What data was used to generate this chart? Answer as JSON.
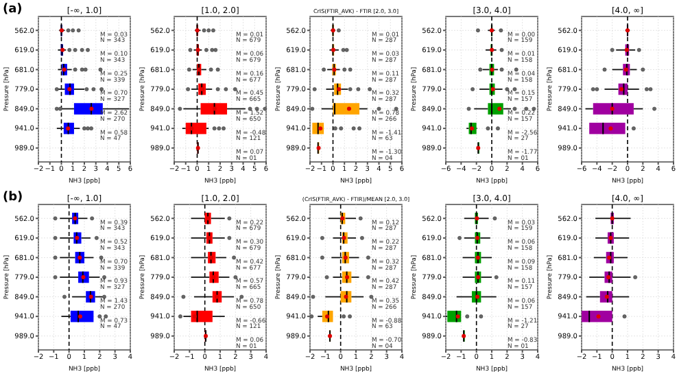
{
  "chart_data": [
    {
      "type": "box",
      "orientation": "horizontal",
      "title": "[-∞, 1.0]",
      "xlabel": "NH3 [ppb]",
      "ylabel": "Pressure [hPa]",
      "categories": [
        "562.0",
        "619.0",
        "681.0",
        "779.0",
        "849.0",
        "941.0",
        "989.0"
      ],
      "color": "#0000ff",
      "xlim": [
        -2,
        6
      ],
      "xticks": [
        -2,
        -1,
        0,
        1,
        2,
        3,
        4,
        5,
        6
      ],
      "grid": true,
      "ref_lines": [
        {
          "axis": "x",
          "value": 0,
          "line_style": "dashed"
        }
      ],
      "boxes": [
        {
          "low": -0.2,
          "q1": -0.05,
          "median": 0,
          "q3": 0.05,
          "high": 0.3,
          "mean": 0.03,
          "outliers": [
            0.6,
            1.0,
            1.5
          ]
        },
        {
          "low": -0.3,
          "q1": -0.05,
          "median": 0.05,
          "q3": 0.15,
          "high": 0.4,
          "mean": 0.1,
          "outliers": [
            0.7,
            1.2,
            1.8,
            2.3
          ]
        },
        {
          "low": -0.3,
          "q1": 0.05,
          "median": 0.2,
          "q3": 0.5,
          "high": 0.9,
          "mean": 0.25,
          "outliers": [
            1.2,
            1.8,
            2.1,
            3.4
          ]
        },
        {
          "low": -0.3,
          "q1": 0.3,
          "median": 0.75,
          "q3": 1.1,
          "high": 2.0,
          "mean": 0.7,
          "outliers": [
            -0.4,
            2.2,
            2.8,
            3.5
          ]
        },
        {
          "low": 0,
          "q1": 1.1,
          "median": 2.6,
          "q3": 3.6,
          "high": 5.9,
          "mean": 2.62,
          "outliers": [
            -0.4,
            -0.1
          ]
        },
        {
          "low": -0.4,
          "q1": 0.2,
          "median": 0.6,
          "q3": 1.1,
          "high": 1.6,
          "mean": 0.58,
          "outliers": [
            2.0,
            2.3,
            2.6
          ]
        },
        null
      ],
      "annotations": [
        "(a)",
        "M = 0.03\nN = 343",
        "M = 0.10\nN = 343",
        "M = 0.25\nN = 339",
        "M = 0.70\nN = 327",
        "M = 2.62\nN = 270",
        "M = 0.58\nN = 47"
      ]
    },
    {
      "type": "box",
      "orientation": "horizontal",
      "title": "[1.0, 2.0]",
      "xlabel": "NH3 [ppb]",
      "ylabel": "Pressure [hPa]",
      "categories": [
        "562.0",
        "619.0",
        "681.0",
        "779.0",
        "849.0",
        "941.0",
        "989.0"
      ],
      "color": "#ff0000",
      "xlim": [
        -2,
        6
      ],
      "xticks": [
        -2,
        -1,
        0,
        1,
        2,
        3,
        4,
        5,
        6
      ],
      "grid": true,
      "ref_lines": [
        {
          "axis": "x",
          "value": 0,
          "line_style": "dashed"
        }
      ],
      "boxes": [
        {
          "low": -0.2,
          "q1": -0.05,
          "median": 0,
          "q3": 0.05,
          "high": 0.3,
          "mean": 0.01,
          "outliers": [
            0.6,
            1.0,
            1.4
          ]
        },
        {
          "low": -0.3,
          "q1": -0.05,
          "median": 0.05,
          "q3": 0.15,
          "high": 0.4,
          "mean": 0.06,
          "outliers": [
            -0.6,
            0.8,
            1.3,
            1.6
          ]
        },
        {
          "low": -0.4,
          "q1": 0,
          "median": 0.15,
          "q3": 0.35,
          "high": 0.8,
          "mean": 0.16,
          "outliers": [
            -0.7,
            1.2,
            1.8
          ]
        },
        {
          "low": -0.5,
          "q1": 0.1,
          "median": 0.4,
          "q3": 0.75,
          "high": 1.3,
          "mean": 0.45,
          "outliers": [
            -0.8,
            1.8,
            2.5,
            3.3
          ]
        },
        {
          "low": -1.2,
          "q1": 0.3,
          "median": 1.5,
          "q3": 2.6,
          "high": 4.2,
          "mean": 1.52,
          "outliers": [
            -1.5,
            4.6,
            5.2,
            5.9
          ]
        },
        {
          "low": -1.3,
          "q1": -1.0,
          "median": -0.5,
          "q3": 0.8,
          "high": 1.0,
          "mean": -0.48,
          "outliers": [
            1.5,
            1.9,
            2.3
          ]
        },
        {
          "low": 0,
          "q1": 0,
          "median": 0.07,
          "q3": 0.1,
          "high": 0.15,
          "mean": 0.07
        }
      ],
      "annotations": [
        "M = 0.01\nN = 679",
        "M = 0.06\nN = 679",
        "M = 0.16\nN = 677",
        "M = 0.45\nN = 665",
        "M = 1.52\nN = 650",
        "M = -0.48\nN = 121",
        "M = 0.07\nN = 01"
      ]
    },
    {
      "type": "box",
      "orientation": "horizontal",
      "title": "CrIS(FTIR_AVK) - FTIR [2.0, 3.0]",
      "xlabel": "NH3 [ppb]",
      "ylabel": "Pressure [hPa]",
      "categories": [
        "562.0",
        "619.0",
        "681.0",
        "779.0",
        "849.0",
        "941.0",
        "989.0"
      ],
      "color": "#ffa500",
      "xlim": [
        -2,
        6
      ],
      "xticks": [
        -2,
        -1,
        0,
        1,
        2,
        3,
        4,
        5,
        6
      ],
      "grid": true,
      "ref_lines": [
        {
          "axis": "x",
          "value": 0,
          "line_style": "dashed"
        }
      ],
      "boxes": [
        {
          "low": -0.2,
          "q1": -0.05,
          "median": 0,
          "q3": 0.05,
          "high": 0.2,
          "mean": 0.01,
          "outliers": [
            0.5
          ]
        },
        {
          "low": -0.3,
          "q1": -0.05,
          "median": 0,
          "q3": 0.1,
          "high": 0.5,
          "mean": 0.03,
          "outliers": [
            0.9,
            1.2
          ]
        },
        {
          "low": -0.5,
          "q1": -0.05,
          "median": 0.1,
          "q3": 0.25,
          "high": 0.6,
          "mean": 0.11,
          "outliers": [
            -0.8,
            1.0,
            1.5
          ]
        },
        {
          "low": -0.6,
          "q1": 0.1,
          "median": 0.4,
          "q3": 0.7,
          "high": 1.3,
          "mean": 0.52,
          "outliers": [
            -1.6,
            1.5,
            2.2,
            3.2
          ]
        },
        {
          "low": -1.0,
          "q1": 0,
          "median": 0.15,
          "q3": 2.3,
          "high": 3.0,
          "mean": 1.4,
          "outliers": [
            -1.8,
            4.0,
            5.5
          ]
        },
        {
          "low": -1.8,
          "q1": -1.8,
          "median": -1.3,
          "q3": -0.8,
          "high": -0.8,
          "mean": -1.1,
          "outliers": [
            0.2,
            0.7,
            1.8,
            2.3
          ]
        },
        {
          "low": -1.4,
          "q1": -1.35,
          "median": -1.3,
          "q3": -1.2,
          "high": -1.2,
          "mean": -1.25
        }
      ],
      "annotations": [
        "M = 0.01\nN = 287",
        "M = 0.03\nN = 287",
        "M = 0.11\nN = 287",
        "M = 0.32\nN = 287",
        "M = 0.78\nN = 266",
        "M = -1.41\nN = 63",
        "M = -1.30\nN = 04"
      ]
    },
    {
      "type": "box",
      "orientation": "horizontal",
      "title": "[3.0, 4.0]",
      "xlabel": "NH3 [ppb]",
      "ylabel": "Pressure [hPa]",
      "categories": [
        "562.0",
        "619.0",
        "681.0",
        "779.0",
        "849.0",
        "941.0",
        "989.0"
      ],
      "color": "#00a000",
      "xlim": [
        -6,
        6
      ],
      "xticks": [
        -6,
        -4,
        -2,
        0,
        2,
        4,
        6
      ],
      "grid": true,
      "ref_lines": [
        {
          "axis": "x",
          "value": 0,
          "line_style": "dashed"
        }
      ],
      "boxes": [
        {
          "low": -0.5,
          "q1": -0.1,
          "median": 0,
          "q3": 0.1,
          "high": 0.4,
          "mean": 0,
          "outliers": [
            -1.8,
            1.2
          ]
        },
        {
          "low": -0.8,
          "q1": -0.15,
          "median": 0,
          "q3": 0.1,
          "high": 0.6,
          "mean": 0.01,
          "outliers": [
            1.3
          ]
        },
        {
          "low": -1.2,
          "q1": -0.3,
          "median": 0,
          "q3": 0.3,
          "high": 0.8,
          "mean": 0.04,
          "outliers": [
            -1.5,
            1.3,
            3.2
          ]
        },
        {
          "low": -1.6,
          "q1": -0.3,
          "median": 0,
          "q3": 0.4,
          "high": 1.4,
          "mean": 0.15,
          "outliers": [
            -2.5,
            2.0,
            3.0
          ]
        },
        {
          "low": -2.3,
          "q1": -0.5,
          "median": 0,
          "q3": 1.5,
          "high": 2.5,
          "mean": 1.0,
          "outliers": [
            -3.0,
            3.0,
            4.5,
            5.5
          ]
        },
        {
          "low": -3.3,
          "q1": -3.0,
          "median": -2.7,
          "q3": -2.0,
          "high": -1.9,
          "mean": -2.6,
          "outliers": [
            -0.5,
            0.8
          ]
        },
        {
          "low": -1.8,
          "q1": -1.8,
          "median": -1.77,
          "q3": -1.75,
          "high": -1.75,
          "mean": -1.77
        }
      ],
      "annotations": [
        "M = 0.00\nN = 159",
        "M = 0.01\nN = 158",
        "M = 0.04\nN = 158",
        "M = 0.15\nN = 157",
        "M = 0.22\nN = 157",
        "M = -2.56\nN = 27",
        "M = -1.77\nN = 01"
      ]
    },
    {
      "type": "box",
      "orientation": "horizontal",
      "title": "[4.0, ∞]",
      "xlabel": "NH3 [ppb]",
      "ylabel": "Pressure [hPa]",
      "categories": [
        "562.0",
        "619.0",
        "681.0",
        "779.0",
        "849.0",
        "941.0",
        "989.0"
      ],
      "color": "#a000a0",
      "xlim": [
        -6,
        6
      ],
      "xticks": [
        -6,
        -4,
        -2,
        0,
        2,
        4,
        6
      ],
      "grid": true,
      "ref_lines": [
        {
          "axis": "x",
          "value": 0,
          "line_style": "dashed"
        }
      ],
      "boxes": [
        {
          "low": -0.3,
          "q1": -0.1,
          "median": 0,
          "q3": 0.1,
          "high": 0.3,
          "mean": 0
        },
        {
          "low": -1.5,
          "q1": -0.3,
          "median": 0,
          "q3": 0.2,
          "high": 1.0,
          "mean": -0.1,
          "outliers": [
            -2.0,
            1.5
          ]
        },
        {
          "low": -2.0,
          "q1": -0.6,
          "median": -0.1,
          "q3": 0.3,
          "high": 1.2,
          "mean": -0.2,
          "outliers": [
            -3.0,
            2.0
          ]
        },
        {
          "low": -3.0,
          "q1": -1.2,
          "median": -0.5,
          "q3": 0,
          "high": 1.5,
          "mean": -0.8,
          "outliers": [
            -4.5,
            -4.0,
            2.5,
            3.0
          ]
        },
        {
          "low": -5.5,
          "q1": -4.5,
          "median": -2.0,
          "q3": 0.8,
          "high": 2.0,
          "mean": -2.0,
          "outliers": [
            3.5
          ]
        },
        {
          "low": -5.0,
          "q1": -5.0,
          "median": -3.2,
          "q3": -0.3,
          "high": -0.3,
          "mean": -2.2,
          "outliers": [
            0.8
          ]
        },
        null
      ]
    },
    {
      "type": "box",
      "orientation": "horizontal",
      "title": "[-∞, 1.0]",
      "xlabel": "NH3 [ppb]",
      "ylabel": "Pressure [hPa]",
      "categories": [
        "562.0",
        "619.0",
        "681.0",
        "779.0",
        "849.0",
        "941.0",
        "989.0"
      ],
      "color": "#0000ff",
      "xlim": [
        -2,
        4
      ],
      "xticks": [
        -2,
        -1,
        0,
        1,
        2,
        3,
        4
      ],
      "grid": true,
      "ref_lines": [
        {
          "axis": "x",
          "value": 0,
          "line_style": "dashed"
        }
      ],
      "boxes": [
        {
          "low": -0.6,
          "q1": 0.2,
          "median": 0.4,
          "q3": 0.6,
          "high": 1.2,
          "mean": 0.39,
          "outliers": [
            -0.9,
            1.5
          ]
        },
        {
          "low": -0.6,
          "q1": 0.3,
          "median": 0.5,
          "q3": 0.8,
          "high": 1.4,
          "mean": 0.52,
          "outliers": [
            -0.9,
            1.8
          ]
        },
        {
          "low": -0.6,
          "q1": 0.4,
          "median": 0.7,
          "q3": 1.0,
          "high": 1.6,
          "mean": 0.7,
          "outliers": [
            -0.9,
            2.1
          ]
        },
        {
          "low": -0.6,
          "q1": 0.6,
          "median": 0.9,
          "q3": 1.3,
          "high": 2.0,
          "mean": 0.93,
          "outliers": [
            -0.9,
            2.3
          ]
        },
        {
          "low": 0.2,
          "q1": 1.1,
          "median": 1.4,
          "q3": 1.7,
          "high": 2.2,
          "mean": 1.43,
          "outliers": [
            -0.3,
            2.3
          ]
        },
        {
          "low": -0.5,
          "q1": 0.1,
          "median": 0.6,
          "q3": 1.6,
          "high": 1.6,
          "mean": 0.73,
          "outliers": [
            2.0,
            2.4
          ]
        },
        null
      ],
      "annotations": [
        "(b)",
        "M = 0.39\nN = 343",
        "M = 0.52\nN = 343",
        "M = 0.70\nN = 339",
        "M = 0.93\nN = 327",
        "M = 1.43\nN = 270",
        "M = 0.73\nN = 47"
      ]
    },
    {
      "type": "box",
      "orientation": "horizontal",
      "title": "[1.0, 2.0]",
      "xlabel": "NH3 [ppb]",
      "ylabel": "Pressure [hPa]",
      "categories": [
        "562.0",
        "619.0",
        "681.0",
        "779.0",
        "849.0",
        "941.0",
        "989.0"
      ],
      "color": "#ff0000",
      "xlim": [
        -2,
        4
      ],
      "xticks": [
        -2,
        -1,
        0,
        1,
        2,
        3,
        4
      ],
      "grid": true,
      "ref_lines": [
        {
          "axis": "x",
          "value": 0,
          "line_style": "dashed"
        }
      ],
      "boxes": [
        {
          "low": -0.9,
          "q1": 0,
          "median": 0.2,
          "q3": 0.4,
          "high": 1.3,
          "mean": 0.22,
          "outliers": [
            1.6
          ]
        },
        {
          "low": -0.9,
          "q1": 0.1,
          "median": 0.3,
          "q3": 0.5,
          "high": 1.3,
          "mean": 0.3,
          "outliers": [
            1.6
          ]
        },
        {
          "low": -0.9,
          "q1": 0.2,
          "median": 0.4,
          "q3": 0.7,
          "high": 1.4,
          "mean": 0.42,
          "outliers": [
            1.9
          ]
        },
        {
          "low": -0.9,
          "q1": 0.3,
          "median": 0.55,
          "q3": 0.9,
          "high": 1.6,
          "mean": 0.57,
          "outliers": [
            2.0
          ]
        },
        {
          "low": -0.7,
          "q1": 0.5,
          "median": 0.8,
          "q3": 1.1,
          "high": 1.9,
          "mean": 0.78,
          "outliers": [
            -1.4,
            2.4
          ]
        },
        {
          "low": -1.4,
          "q1": -0.9,
          "median": -0.5,
          "q3": 0.5,
          "high": 1.3,
          "mean": -0.66,
          "outliers": [
            -1.6
          ]
        },
        {
          "low": -0.05,
          "q1": 0,
          "median": 0.06,
          "q3": 0.1,
          "high": 0.15,
          "mean": 0.06
        }
      ],
      "annotations": [
        "M = 0.22\nN = 679",
        "M = 0.30\nN = 679",
        "M = 0.42\nN = 677",
        "M = 0.57\nN = 665",
        "M = 0.78\nN = 650",
        "M = -0.66\nN = 121",
        "M = 0.06\nN = 01"
      ]
    },
    {
      "type": "box",
      "orientation": "horizontal",
      "title": "(CrIS(FTIR_AVK) - FTIR)/MEAN [2.0, 3.0]",
      "xlabel": "NH3 [ppb]",
      "ylabel": "Pressure [hPa]",
      "categories": [
        "562.0",
        "619.0",
        "681.0",
        "779.0",
        "849.0",
        "941.0",
        "989.0"
      ],
      "color": "#ffa500",
      "xlim": [
        -2,
        4
      ],
      "xticks": [
        -2,
        -1,
        0,
        1,
        2,
        3,
        4
      ],
      "grid": true,
      "ref_lines": [
        {
          "axis": "x",
          "value": 0,
          "line_style": "dashed"
        }
      ],
      "boxes": [
        {
          "low": -0.8,
          "q1": 0,
          "median": 0.1,
          "q3": 0.3,
          "high": 1.0,
          "mean": 0.12,
          "outliers": [
            1.3
          ]
        },
        {
          "low": -0.5,
          "q1": 0.1,
          "median": 0.2,
          "q3": 0.45,
          "high": 1.0,
          "mean": 0.22,
          "outliers": [
            -1.2,
            1.4
          ]
        },
        {
          "low": -0.6,
          "q1": 0.1,
          "median": 0.3,
          "q3": 0.55,
          "high": 1.2,
          "mean": 0.32,
          "outliers": [
            -1.2,
            1.8
          ]
        },
        {
          "low": -0.5,
          "q1": 0.1,
          "median": 0.4,
          "q3": 0.7,
          "high": 1.2,
          "mean": 0.42,
          "outliers": [
            -0.9,
            1.8
          ]
        },
        {
          "low": -1.0,
          "q1": 0,
          "median": 0.4,
          "q3": 0.7,
          "high": 1.5,
          "mean": 0.35,
          "outliers": [
            -1.8,
            2.0
          ]
        },
        {
          "low": -1.5,
          "q1": -1.2,
          "median": -0.8,
          "q3": -0.5,
          "high": -0.5,
          "mean": -0.88,
          "outliers": [
            -1.9,
            0.2,
            0.6
          ]
        },
        {
          "low": -0.8,
          "q1": -0.75,
          "median": -0.7,
          "q3": -0.65,
          "high": -0.6,
          "mean": -0.7
        }
      ],
      "annotations": [
        "M = 0.12\nN = 287",
        "M = 0.22\nN = 287",
        "M = 0.32\nN = 287",
        "M = 0.42\nN = 287",
        "M = 0.35\nN = 266",
        "M = -0.88\nN = 63",
        "M = -0.70\nN = 04"
      ]
    },
    {
      "type": "box",
      "orientation": "horizontal",
      "title": "[3.0, 4.0]",
      "xlabel": "NH3 [ppb]",
      "ylabel": "Pressure [hPa]",
      "categories": [
        "562.0",
        "619.0",
        "681.0",
        "779.0",
        "849.0",
        "941.0",
        "989.0"
      ],
      "color": "#00a000",
      "xlim": [
        -2,
        4
      ],
      "xticks": [
        -2,
        -1,
        0,
        1,
        2,
        3,
        4
      ],
      "grid": true,
      "ref_lines": [
        {
          "axis": "x",
          "value": 0,
          "line_style": "dashed"
        }
      ],
      "boxes": [
        {
          "low": -0.8,
          "q1": -0.1,
          "median": 0,
          "q3": 0.1,
          "high": 0.8,
          "mean": 0.03,
          "outliers": [
            1.2
          ]
        },
        {
          "low": -0.8,
          "q1": -0.1,
          "median": 0.05,
          "q3": 0.25,
          "high": 0.9,
          "mean": 0.06,
          "outliers": [
            -1.1
          ]
        },
        {
          "low": -0.9,
          "q1": -0.1,
          "median": 0.1,
          "q3": 0.3,
          "high": 1.0,
          "mean": 0.09
        },
        {
          "low": -0.9,
          "q1": -0.1,
          "median": 0.1,
          "q3": 0.3,
          "high": 1.0,
          "mean": 0.11,
          "outliers": [
            1.3
          ]
        },
        {
          "low": -1.3,
          "q1": -0.3,
          "median": 0,
          "q3": 0.3,
          "high": 1.3,
          "mean": 0.06
        },
        {
          "low": -2.0,
          "q1": -1.9,
          "median": -1.3,
          "q3": -1.0,
          "high": -1.0,
          "mean": -1.21,
          "outliers": [
            -0.6,
            0.3
          ]
        },
        {
          "low": -0.85,
          "q1": -0.85,
          "median": -0.83,
          "q3": -0.8,
          "high": -0.8,
          "mean": -0.83
        }
      ],
      "annotations": [
        "M = 0.03\nN = 159",
        "M = 0.06\nN = 158",
        "M = 0.09\nN = 158",
        "M = 0.11\nN = 157",
        "M = 0.06\nN = 157",
        "M = -1.21\nN = 27",
        "M = -0.83\nN = 01"
      ]
    },
    {
      "type": "box",
      "orientation": "horizontal",
      "title": "[4.0, ∞]",
      "xlabel": "NH3 [ppb]",
      "ylabel": "Pressure [hPa]",
      "categories": [
        "562.0",
        "619.0",
        "681.0",
        "779.0",
        "849.0",
        "941.0",
        "989.0"
      ],
      "color": "#a000a0",
      "xlim": [
        -2,
        4
      ],
      "xticks": [
        -2,
        -1,
        0,
        1,
        2,
        3,
        4
      ],
      "grid": true,
      "ref_lines": [
        {
          "axis": "x",
          "value": 0,
          "line_style": "dashed"
        }
      ],
      "boxes": [
        {
          "low": -1.1,
          "q1": -0.1,
          "median": 0,
          "q3": 0.1,
          "high": 1.2,
          "mean": 0
        },
        {
          "low": -1.1,
          "q1": -0.3,
          "median": -0.1,
          "q3": 0.1,
          "high": 1.1,
          "mean": -0.1
        },
        {
          "low": -1.2,
          "q1": -0.4,
          "median": -0.1,
          "q3": 0.1,
          "high": 1.0,
          "mean": -0.2
        },
        {
          "low": -1.5,
          "q1": -0.5,
          "median": -0.2,
          "q3": 0,
          "high": 1.2,
          "mean": -0.25,
          "outliers": [
            1.5
          ]
        },
        {
          "low": -1.7,
          "q1": -0.8,
          "median": -0.3,
          "q3": 0,
          "high": 1.1,
          "mean": -0.35
        },
        {
          "low": -2.0,
          "q1": -2.0,
          "median": -1.5,
          "q3": 0,
          "high": 0,
          "mean": -0.9,
          "outliers": [
            0.8
          ]
        },
        null
      ]
    }
  ]
}
